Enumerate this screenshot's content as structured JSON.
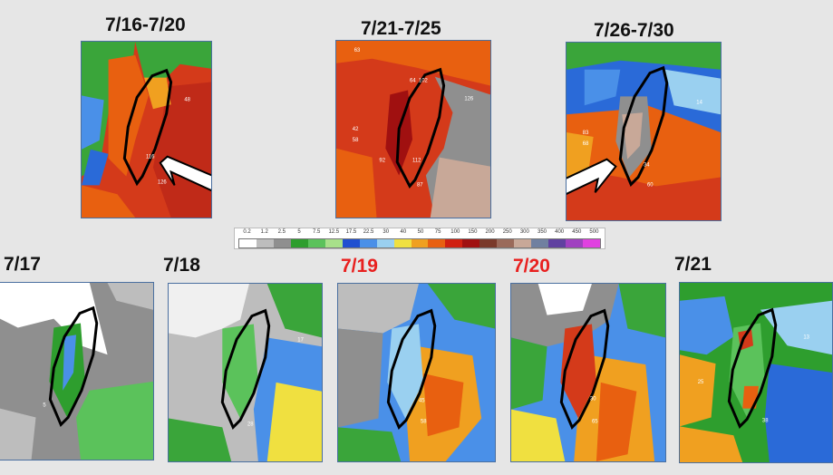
{
  "top_row": [
    {
      "title": "7/16-7/20"
    },
    {
      "title": "7/21-7/25"
    },
    {
      "title": "7/26-7/30"
    }
  ],
  "bottom_row": [
    {
      "title": "7/17",
      "highlight": false
    },
    {
      "title": "7/18",
      "highlight": false
    },
    {
      "title": "7/19",
      "highlight": true
    },
    {
      "title": "7/20",
      "highlight": true
    },
    {
      "title": "7/21",
      "highlight": false
    }
  ],
  "legend": {
    "labels": [
      "0.2",
      "1.2",
      "2.5",
      "5",
      "7.5",
      "12.5",
      "17.5",
      "22.5",
      "30",
      "40",
      "50",
      "75",
      "100",
      "150",
      "200",
      "250",
      "300",
      "350",
      "400",
      "450",
      "500"
    ],
    "colors": [
      "#ffffff",
      "#bdbdbd",
      "#8f8f8f",
      "#2e9e2e",
      "#5bc25b",
      "#a8e08a",
      "#1f4fd0",
      "#4a90e8",
      "#9ad0f0",
      "#f0e040",
      "#f0a020",
      "#e86010",
      "#d02010",
      "#a01010",
      "#7a3a2a",
      "#9a6a5a",
      "#c8a898",
      "#7080a0",
      "#6040a0",
      "#a040c0",
      "#e040e0"
    ]
  },
  "map_labels": {
    "m1": [
      "48",
      "126",
      "116"
    ],
    "m2": [
      "63",
      "64",
      "102",
      "126",
      "42",
      "58",
      "92",
      "112",
      "87"
    ],
    "m3": [
      "14",
      "83",
      "68",
      "34",
      "60"
    ],
    "b1": [
      "5"
    ],
    "b2": [
      "17",
      "28"
    ],
    "b3": [
      "45",
      "58"
    ],
    "b4": [
      "30",
      "65"
    ],
    "b5": [
      "13",
      "25",
      "38"
    ]
  },
  "colors": {
    "title": "#111111",
    "title_highlight": "#e8201f",
    "map_border": "#4a6fa0"
  }
}
